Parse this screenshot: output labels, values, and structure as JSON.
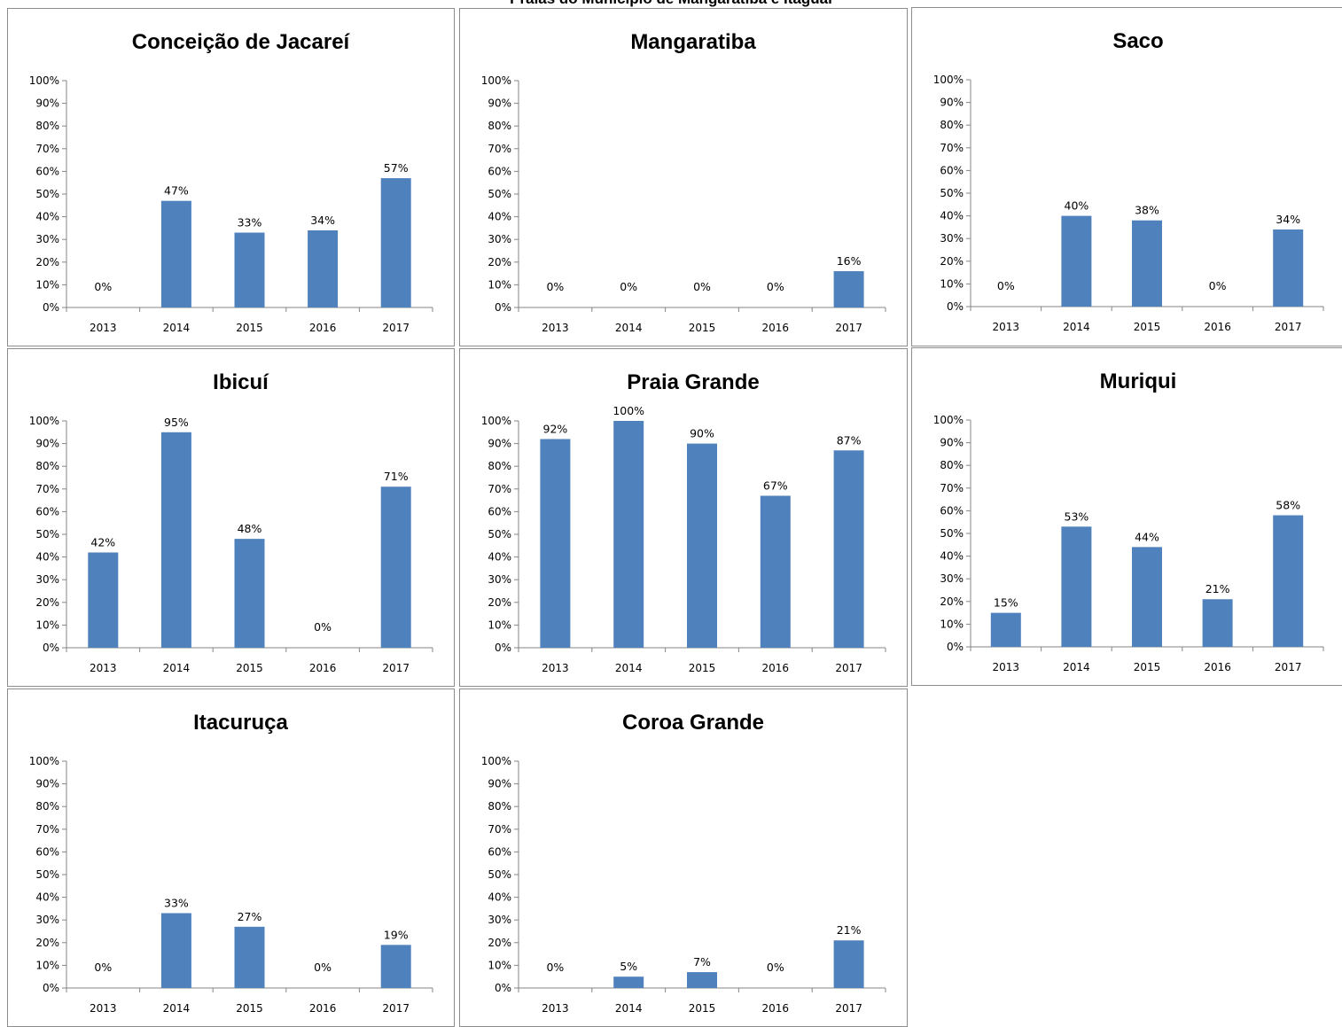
{
  "page_title": "Praias do Município de Mangaratiba e Itaguaí",
  "colors": {
    "bar": "#4f81bd",
    "axis": "#868686",
    "border": "#8c8c8c"
  },
  "chart_data": [
    {
      "type": "bar",
      "title": "Conceição de Jacareí",
      "categories": [
        "2013",
        "2014",
        "2015",
        "2016",
        "2017"
      ],
      "values": [
        0,
        47,
        33,
        34,
        57
      ],
      "data_labels": [
        "0%",
        "47%",
        "33%",
        "34%",
        "57%"
      ],
      "y_ticks": [
        "0%",
        "10%",
        "20%",
        "30%",
        "40%",
        "50%",
        "60%",
        "70%",
        "80%",
        "90%",
        "100%"
      ],
      "ylim": [
        0,
        100
      ],
      "grid": false,
      "legend": "none"
    },
    {
      "type": "bar",
      "title": "Mangaratiba",
      "categories": [
        "2013",
        "2014",
        "2015",
        "2016",
        "2017"
      ],
      "values": [
        0,
        0,
        0,
        0,
        16
      ],
      "data_labels": [
        "0%",
        "0%",
        "0%",
        "0%",
        "16%"
      ],
      "y_ticks": [
        "0%",
        "10%",
        "20%",
        "30%",
        "40%",
        "50%",
        "60%",
        "70%",
        "80%",
        "90%",
        "100%"
      ],
      "ylim": [
        0,
        100
      ],
      "grid": false,
      "legend": "none"
    },
    {
      "type": "bar",
      "title": "Saco",
      "categories": [
        "2013",
        "2014",
        "2015",
        "2016",
        "2017"
      ],
      "values": [
        0,
        40,
        38,
        0,
        34
      ],
      "data_labels": [
        "0%",
        "40%",
        "38%",
        "0%",
        "34%"
      ],
      "y_ticks": [
        "0%",
        "10%",
        "20%",
        "30%",
        "40%",
        "50%",
        "60%",
        "70%",
        "80%",
        "90%",
        "100%"
      ],
      "ylim": [
        0,
        100
      ],
      "grid": false,
      "legend": "none"
    },
    {
      "type": "bar",
      "title": "Ibicuí",
      "categories": [
        "2013",
        "2014",
        "2015",
        "2016",
        "2017"
      ],
      "values": [
        42,
        95,
        48,
        0,
        71
      ],
      "data_labels": [
        "42%",
        "95%",
        "48%",
        "0%",
        "71%"
      ],
      "y_ticks": [
        "0%",
        "10%",
        "20%",
        "30%",
        "40%",
        "50%",
        "60%",
        "70%",
        "80%",
        "90%",
        "100%"
      ],
      "ylim": [
        0,
        100
      ],
      "grid": false,
      "legend": "none"
    },
    {
      "type": "bar",
      "title": "Praia Grande",
      "categories": [
        "2013",
        "2014",
        "2015",
        "2016",
        "2017"
      ],
      "values": [
        92,
        100,
        90,
        67,
        87
      ],
      "data_labels": [
        "92%",
        "100%",
        "90%",
        "67%",
        "87%"
      ],
      "y_ticks": [
        "0%",
        "10%",
        "20%",
        "30%",
        "40%",
        "50%",
        "60%",
        "70%",
        "80%",
        "90%",
        "100%"
      ],
      "ylim": [
        0,
        100
      ],
      "grid": false,
      "legend": "none"
    },
    {
      "type": "bar",
      "title": "Muriqui",
      "categories": [
        "2013",
        "2014",
        "2015",
        "2016",
        "2017"
      ],
      "values": [
        15,
        53,
        44,
        21,
        58
      ],
      "data_labels": [
        "15%",
        "53%",
        "44%",
        "21%",
        "58%"
      ],
      "y_ticks": [
        "0%",
        "10%",
        "20%",
        "30%",
        "40%",
        "50%",
        "60%",
        "70%",
        "80%",
        "90%",
        "100%"
      ],
      "ylim": [
        0,
        100
      ],
      "grid": false,
      "legend": "none"
    },
    {
      "type": "bar",
      "title": "Itacuruça",
      "categories": [
        "2013",
        "2014",
        "2015",
        "2016",
        "2017"
      ],
      "values": [
        0,
        33,
        27,
        0,
        19
      ],
      "data_labels": [
        "0%",
        "33%",
        "27%",
        "0%",
        "19%"
      ],
      "y_ticks": [
        "0%",
        "10%",
        "20%",
        "30%",
        "40%",
        "50%",
        "60%",
        "70%",
        "80%",
        "90%",
        "100%"
      ],
      "ylim": [
        0,
        100
      ],
      "grid": false,
      "legend": "none"
    },
    {
      "type": "bar",
      "title": "Coroa Grande",
      "categories": [
        "2013",
        "2014",
        "2015",
        "2016",
        "2017"
      ],
      "values": [
        0,
        5,
        7,
        0,
        21
      ],
      "data_labels": [
        "0%",
        "5%",
        "7%",
        "0%",
        "21%"
      ],
      "y_ticks": [
        "0%",
        "10%",
        "20%",
        "30%",
        "40%",
        "50%",
        "60%",
        "70%",
        "80%",
        "90%",
        "100%"
      ],
      "ylim": [
        0,
        100
      ],
      "grid": false,
      "legend": "none"
    }
  ]
}
